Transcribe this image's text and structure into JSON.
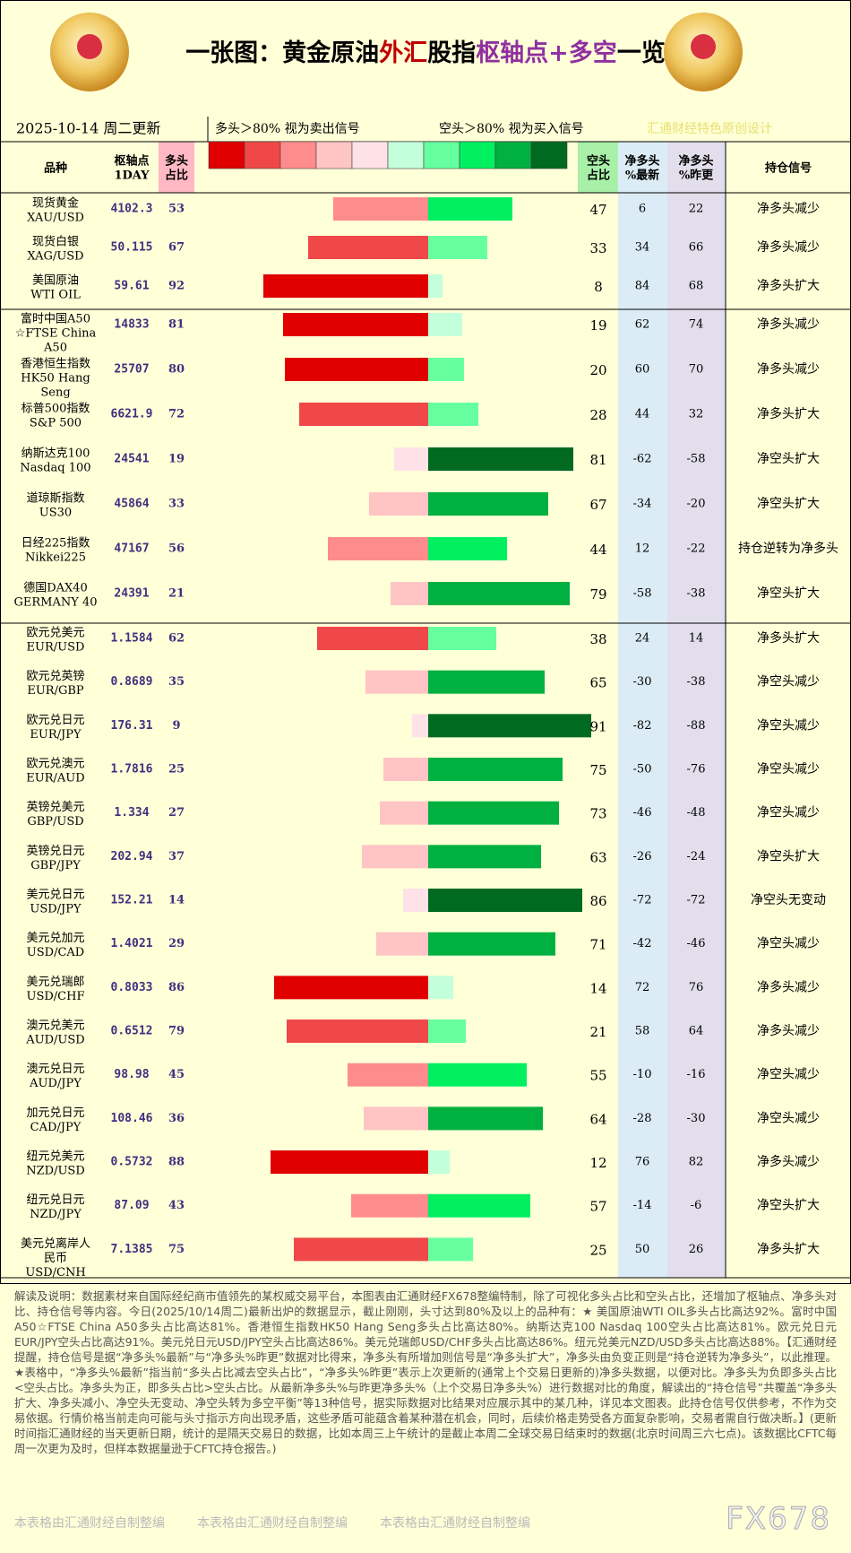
{
  "header": {
    "title": [
      {
        "text": "一张图：黄金原油",
        "color": "#000000"
      },
      {
        "text": "外汇",
        "color": "#c00000"
      },
      {
        "text": "股指",
        "color": "#000000"
      },
      {
        "text": "枢轴点+多空",
        "color": "#9030a0"
      },
      {
        "text": "一览",
        "color": "#000000"
      }
    ],
    "date": "2025-10-14 周二更新",
    "legend_long": "多头＞80% 视为卖出信号",
    "legend_short": "空头＞80% 视为买入信号",
    "watermark": "汇通财经特色原创设计",
    "long_scale": [
      "#e00000",
      "#f04848",
      "#ff8c8c",
      "#ffc4c4",
      "#ffe2e8"
    ],
    "short_scale": [
      "#c4ffdc",
      "#66ffa0",
      "#00f060",
      "#00b040",
      "#006a20"
    ],
    "columns": {
      "name": [
        "品种"
      ],
      "pivot": [
        "枢轴点",
        "1DAY"
      ],
      "long": [
        "多头",
        "占比"
      ],
      "short": [
        "空头",
        "占比"
      ],
      "net_latest": [
        "净多头",
        "%最新"
      ],
      "net_prev": [
        "净多头",
        "%昨更"
      ],
      "signal": [
        "持仓信号"
      ]
    }
  },
  "table": {
    "groups": [
      [
        {
          "name": [
            "现货黄金",
            "XAU/USD"
          ],
          "pivot": 4102.3,
          "long": 53,
          "short": 47,
          "net_latest": 6,
          "net_prev": 22,
          "signal": "净多头减少"
        },
        {
          "name": [
            "现货白银",
            "XAG/USD"
          ],
          "pivot": 50.115,
          "long": 67,
          "short": 33,
          "net_latest": 34,
          "net_prev": 66,
          "signal": "净多头减少"
        },
        {
          "name": [
            "美国原油",
            "WTI OIL"
          ],
          "pivot": 59.61,
          "long": 92,
          "short": 8,
          "net_latest": 84,
          "net_prev": 68,
          "signal": "净多头扩大"
        }
      ],
      [
        {
          "name": [
            "富时中国A50",
            "☆FTSE China",
            "A50"
          ],
          "pivot": 14833,
          "long": 81,
          "short": 19,
          "net_latest": 62,
          "net_prev": 74,
          "signal": "净多头减少"
        },
        {
          "name": [
            "香港恒生指数",
            "HK50 Hang",
            "Seng"
          ],
          "pivot": 25707,
          "long": 80,
          "short": 20,
          "net_latest": 60,
          "net_prev": 70,
          "signal": "净多头减少"
        },
        {
          "name": [
            "标普500指数",
            "S&P 500"
          ],
          "pivot": 6621.9,
          "long": 72,
          "short": 28,
          "net_latest": 44,
          "net_prev": 32,
          "signal": "净多头扩大"
        },
        {
          "name": [
            "纳斯达克100",
            "Nasdaq 100"
          ],
          "pivot": 24541,
          "long": 19,
          "short": 81,
          "net_latest": -62,
          "net_prev": -58,
          "signal": "净空头扩大"
        },
        {
          "name": [
            "道琼斯指数",
            "US30"
          ],
          "pivot": 45864,
          "long": 33,
          "short": 67,
          "net_latest": -34,
          "net_prev": -20,
          "signal": "净空头扩大"
        },
        {
          "name": [
            "日经225指数",
            "Nikkei225"
          ],
          "pivot": 47167,
          "long": 56,
          "short": 44,
          "net_latest": 12,
          "net_prev": -22,
          "signal": "持仓逆转为净多头"
        },
        {
          "name": [
            "德国DAX40",
            "GERMANY 40"
          ],
          "pivot": 24391,
          "long": 21,
          "short": 79,
          "net_latest": -58,
          "net_prev": -38,
          "signal": "净空头扩大"
        }
      ],
      [
        {
          "name": [
            "欧元兑美元",
            "EUR/USD"
          ],
          "pivot": 1.1584,
          "long": 62,
          "short": 38,
          "net_latest": 24,
          "net_prev": 14,
          "signal": "净多头扩大"
        },
        {
          "name": [
            "欧元兑英镑",
            "EUR/GBP"
          ],
          "pivot": 0.8689,
          "long": 35,
          "short": 65,
          "net_latest": -30,
          "net_prev": -38,
          "signal": "净空头减少"
        },
        {
          "name": [
            "欧元兑日元",
            "EUR/JPY"
          ],
          "pivot": 176.31,
          "long": 9,
          "short": 91,
          "net_latest": -82,
          "net_prev": -88,
          "signal": "净空头减少"
        },
        {
          "name": [
            "欧元兑澳元",
            "EUR/AUD"
          ],
          "pivot": 1.7816,
          "long": 25,
          "short": 75,
          "net_latest": -50,
          "net_prev": -76,
          "signal": "净空头减少"
        },
        {
          "name": [
            "英镑兑美元",
            "GBP/USD"
          ],
          "pivot": 1.334,
          "long": 27,
          "short": 73,
          "net_latest": -46,
          "net_prev": -48,
          "signal": "净空头减少"
        },
        {
          "name": [
            "英镑兑日元",
            "GBP/JPY"
          ],
          "pivot": 202.94,
          "long": 37,
          "short": 63,
          "net_latest": -26,
          "net_prev": -24,
          "signal": "净空头扩大"
        },
        {
          "name": [
            "美元兑日元",
            "USD/JPY"
          ],
          "pivot": 152.21,
          "long": 14,
          "short": 86,
          "net_latest": -72,
          "net_prev": -72,
          "signal": "净空头无变动"
        },
        {
          "name": [
            "美元兑加元",
            "USD/CAD"
          ],
          "pivot": 1.4021,
          "long": 29,
          "short": 71,
          "net_latest": -42,
          "net_prev": -46,
          "signal": "净空头减少"
        },
        {
          "name": [
            "美元兑瑞郎",
            "USD/CHF"
          ],
          "pivot": 0.8033,
          "long": 86,
          "short": 14,
          "net_latest": 72,
          "net_prev": 76,
          "signal": "净多头减少"
        },
        {
          "name": [
            "澳元兑美元",
            "AUD/USD"
          ],
          "pivot": 0.6512,
          "long": 79,
          "short": 21,
          "net_latest": 58,
          "net_prev": 64,
          "signal": "净多头减少"
        },
        {
          "name": [
            "澳元兑日元",
            "AUD/JPY"
          ],
          "pivot": 98.98,
          "long": 45,
          "short": 55,
          "net_latest": -10,
          "net_prev": -16,
          "signal": "净空头减少"
        },
        {
          "name": [
            "加元兑日元",
            "CAD/JPY"
          ],
          "pivot": 108.46,
          "long": 36,
          "short": 64,
          "net_latest": -28,
          "net_prev": -30,
          "signal": "净空头减少"
        },
        {
          "name": [
            "纽元兑美元",
            "NZD/USD"
          ],
          "pivot": 0.5732,
          "long": 88,
          "short": 12,
          "net_latest": 76,
          "net_prev": 82,
          "signal": "净多头减少"
        },
        {
          "name": [
            "纽元兑日元",
            "NZD/JPY"
          ],
          "pivot": 87.09,
          "long": 43,
          "short": 57,
          "net_latest": -14,
          "net_prev": -6,
          "signal": "净空头扩大"
        },
        {
          "name": [
            "美元兑离岸人",
            "民币",
            "USD/CNH"
          ],
          "pivot": 7.1385,
          "long": 75,
          "short": 25,
          "net_latest": 50,
          "net_prev": 26,
          "signal": "净多头扩大"
        }
      ]
    ]
  },
  "footer": {
    "note": "解读及说明：数据素材来自国际经纪商市值领先的某权威交易平台，本图表由汇通财经FX678整编特制，除了可视化多头占比和空头占比，还增加了枢轴点、净多头对比、持仓信号等内容。今日(2025/10/14周二)最新出炉的数据显示，截止刚刚，头寸达到80%及以上的品种有：★ 美国原油WTI OIL多头占比高达92%。富时中国A50☆FTSE China A50多头占比高达81%。香港恒生指数HK50 Hang Seng多头占比高达80%。纳斯达克100 Nasdaq 100空头占比高达81%。欧元兑日元EUR/JPY空头占比高达91%。美元兑日元USD/JPY空头占比高达86%。美元兑瑞郎USD/CHF多头占比高达86%。纽元兑美元NZD/USD多头占比高达88%。【汇通财经提醒，持仓信号是据“净多头%最新”与“净多头%昨更”数据对比得来，净多头有所增加则信号是“净多头扩大”，净多头由负变正则是“持仓逆转为净多头”，以此推理。★表格中，“净多头%最新”指当前“多头占比减去空头占比”，“净多头%昨更”表示上次更新的(通常上个交易日更新的)净多头数据，以便对比。净多头为负即多头占比<空头占比。净多头为正，即多头占比>空头占比。从最新净多头%与昨更净多头%（上个交易日净多头%）进行数据对比的角度，解读出的“持仓信号”共覆盖“净多头扩大、净多头减小、净空头无变动、净空头转为多空平衡”等13种信号，据实际数据对比结果对应展示其中的某几种，详见本文图表。此持仓信号仅供参考，不作为交易依据。行情价格当前走向可能与头寸指示方向出现矛盾，这些矛盾可能蕴含着某种潜在机会，同时，后续价格走势受各方面复杂影响，交易者需自行做决断。】(更新时间指汇通财经的当天更新日期，统计的是隔天交易日的数据，比如本周三上午统计的是截止本周二全球交易日结束时的数据(北京时间周三六七点)。该数据比CFTC每周一次更为及时，但样本数据量逊于CFTC持仓报告。)",
    "watermarks": [
      "本表格由汇通财经自制整编",
      "本表格由汇通财经自制整编",
      "本表格由汇通财经自制整编"
    ],
    "brand": "FX678"
  }
}
